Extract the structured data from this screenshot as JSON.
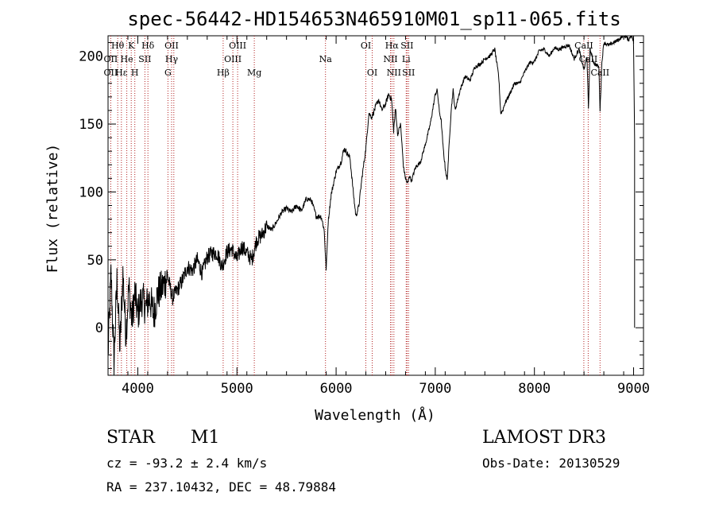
{
  "chart_data": {
    "type": "line",
    "title": "spec-56442-HD154653N465910M01_sp11-065.fits",
    "xlabel": "Wavelength (Å)",
    "ylabel": "Flux (relative)",
    "xlim": [
      3700,
      9100
    ],
    "ylim": [
      -35,
      215
    ],
    "xticks": [
      4000,
      5000,
      6000,
      7000,
      8000,
      9000
    ],
    "yticks": [
      0,
      50,
      100,
      150,
      200
    ],
    "series": [
      {
        "name": "flux",
        "x": [
          3700,
          3730,
          3760,
          3790,
          3820,
          3850,
          3880,
          3910,
          3940,
          3970,
          4000,
          4040,
          4080,
          4120,
          4160,
          4200,
          4250,
          4300,
          4350,
          4400,
          4450,
          4500,
          4550,
          4600,
          4650,
          4700,
          4750,
          4800,
          4850,
          4900,
          4950,
          5000,
          5050,
          5100,
          5150,
          5200,
          5250,
          5300,
          5350,
          5400,
          5450,
          5500,
          5550,
          5600,
          5650,
          5700,
          5750,
          5800,
          5850,
          5880,
          5900,
          5920,
          5950,
          6000,
          6050,
          6080,
          6100,
          6140,
          6180,
          6200,
          6230,
          6260,
          6300,
          6330,
          6360,
          6400,
          6430,
          6460,
          6500,
          6530,
          6560,
          6580,
          6600,
          6620,
          6650,
          6680,
          6700,
          6720,
          6740,
          6760,
          6800,
          6850,
          6900,
          6950,
          7000,
          7020,
          7040,
          7060,
          7080,
          7100,
          7120,
          7140,
          7160,
          7180,
          7200,
          7250,
          7300,
          7350,
          7400,
          7450,
          7500,
          7550,
          7600,
          7620,
          7640,
          7660,
          7680,
          7700,
          7750,
          7800,
          7850,
          7900,
          7950,
          8000,
          8050,
          8100,
          8150,
          8200,
          8250,
          8300,
          8350,
          8400,
          8450,
          8500,
          8530,
          8545,
          8560,
          8600,
          8650,
          8662,
          8680,
          8700,
          8750,
          8800,
          8850,
          8900,
          8950,
          8980,
          9000,
          9010
        ],
        "values": [
          -20,
          40,
          -25,
          35,
          -15,
          40,
          -5,
          30,
          5,
          25,
          10,
          22,
          15,
          22,
          10,
          25,
          30,
          38,
          22,
          28,
          35,
          45,
          42,
          50,
          40,
          52,
          55,
          55,
          45,
          56,
          58,
          50,
          60,
          55,
          50,
          65,
          68,
          75,
          72,
          78,
          85,
          88,
          85,
          90,
          86,
          95,
          94,
          82,
          82,
          72,
          42,
          78,
          98,
          115,
          122,
          132,
          130,
          125,
          95,
          82,
          90,
          110,
          132,
          158,
          155,
          163,
          168,
          160,
          165,
          172,
          168,
          145,
          162,
          142,
          150,
          118,
          110,
          106,
          112,
          108,
          118,
          122,
          135,
          150,
          172,
          175,
          160,
          152,
          132,
          118,
          108,
          135,
          160,
          175,
          160,
          175,
          185,
          182,
          192,
          194,
          198,
          200,
          205,
          195,
          185,
          158,
          160,
          165,
          172,
          180,
          180,
          188,
          195,
          196,
          204,
          205,
          200,
          206,
          205,
          207,
          208,
          198,
          205,
          190,
          200,
          160,
          205,
          195,
          192,
          160,
          195,
          210,
          208,
          210,
          212,
          216,
          212,
          216,
          210,
          140
        ]
      }
    ],
    "markers": [
      {
        "label": "Hθ",
        "x": 3797,
        "row": 0
      },
      {
        "label": "K",
        "x": 3934,
        "row": 0
      },
      {
        "label": "Hδ",
        "x": 4102,
        "row": 0
      },
      {
        "label": "OII",
        "x": 4341,
        "row": 0
      },
      {
        "label": "OIII",
        "x": 5007,
        "row": 0
      },
      {
        "label": "OI",
        "x": 6300,
        "row": 0
      },
      {
        "label": "Hα",
        "x": 6563,
        "row": 0
      },
      {
        "label": "SII",
        "x": 6716,
        "row": 0
      },
      {
        "label": "CaII",
        "x": 8498,
        "row": 0
      },
      {
        "label": "OII",
        "x": 3727,
        "row": 1
      },
      {
        "label": "He",
        "x": 3889,
        "row": 1
      },
      {
        "label": "SII",
        "x": 4072,
        "row": 1
      },
      {
        "label": "Hγ",
        "x": 4341,
        "row": 1
      },
      {
        "label": "OIII",
        "x": 4959,
        "row": 1
      },
      {
        "label": "Na",
        "x": 5893,
        "row": 1
      },
      {
        "label": "NII",
        "x": 6548,
        "row": 1
      },
      {
        "label": "Li",
        "x": 6707,
        "row": 1
      },
      {
        "label": "CaII",
        "x": 8542,
        "row": 1
      },
      {
        "label": "OII",
        "x": 3727,
        "row": 2
      },
      {
        "label": "Hε",
        "x": 3835,
        "row": 2
      },
      {
        "label": "H",
        "x": 3970,
        "row": 2
      },
      {
        "label": "G",
        "x": 4304,
        "row": 2
      },
      {
        "label": "Hβ",
        "x": 4861,
        "row": 2
      },
      {
        "label": "Mg",
        "x": 5175,
        "row": 2
      },
      {
        "label": "OI",
        "x": 6364,
        "row": 2
      },
      {
        "label": "NII",
        "x": 6583,
        "row": 2
      },
      {
        "label": "SII",
        "x": 6731,
        "row": 2
      },
      {
        "label": "CaII",
        "x": 8662,
        "row": 2
      }
    ],
    "lines_x": [
      3727,
      3798,
      3835,
      3889,
      3934,
      3970,
      4072,
      4102,
      4304,
      4341,
      4363,
      4861,
      4959,
      5007,
      5175,
      5893,
      6300,
      6364,
      6548,
      6563,
      6583,
      6707,
      6716,
      6731,
      8498,
      8542,
      8662
    ]
  },
  "info": {
    "object_class": "STAR",
    "subclass": "M1",
    "survey": "LAMOST DR3",
    "cz": "cz = -93.2 ± 2.4 km/s",
    "obs_date": "Obs-Date: 20130529",
    "coords": "RA = 237.10432, DEC =  48.79884"
  }
}
